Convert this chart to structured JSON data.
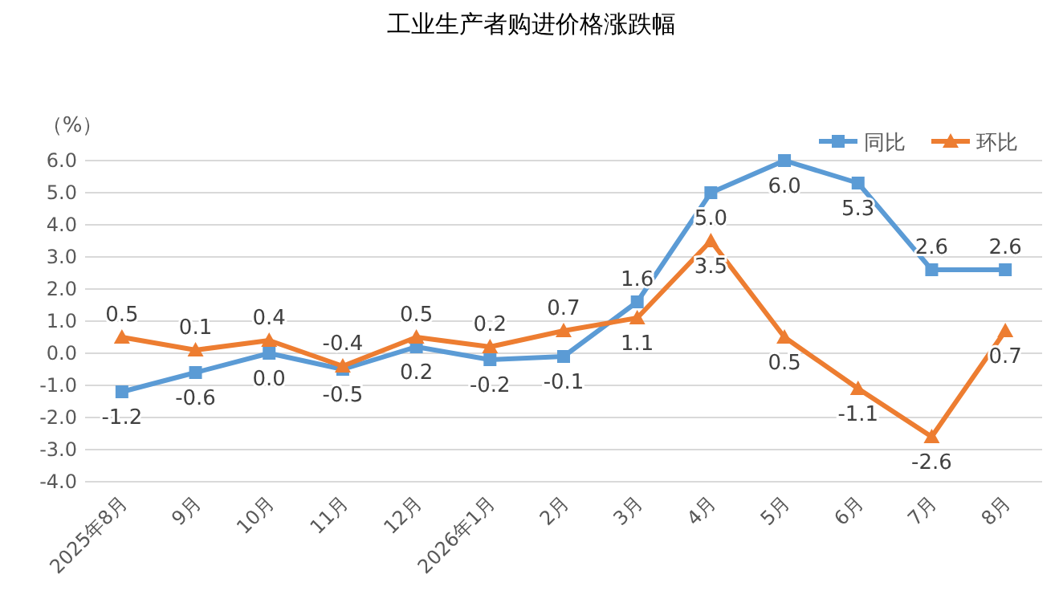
{
  "chart_data": {
    "type": "line",
    "title": "工业生产者购进价格涨跌幅",
    "ylabel": "（%）",
    "categories": [
      "2025年8月",
      "9月",
      "10月",
      "11月",
      "12月",
      "2026年1月",
      "2月",
      "3月",
      "4月",
      "5月",
      "6月",
      "7月",
      "8月"
    ],
    "series": [
      {
        "name": "同比",
        "color": "#5b9bd5",
        "marker": "square",
        "values": [
          -1.2,
          -0.6,
          0.0,
          -0.5,
          0.2,
          -0.2,
          -0.1,
          1.6,
          5.0,
          6.0,
          5.3,
          2.6,
          2.6
        ],
        "value_labels": [
          "-1.2",
          "-0.6",
          "0.0",
          "-0.5",
          "0.2",
          "-0.2",
          "-0.1",
          "1.6",
          "5.0",
          "6.0",
          "5.3",
          "2.6",
          "2.6"
        ]
      },
      {
        "name": "环比",
        "color": "#ed7d31",
        "marker": "triangle",
        "values": [
          0.5,
          0.1,
          0.4,
          -0.4,
          0.5,
          0.2,
          0.7,
          1.1,
          3.5,
          0.5,
          -1.1,
          -2.6,
          0.7
        ],
        "value_labels": [
          "0.5",
          "0.1",
          "0.4",
          "-0.4",
          "0.5",
          "0.2",
          "0.7",
          "1.1",
          "3.5",
          "0.5",
          "-1.1",
          "-2.6",
          "0.7"
        ]
      }
    ],
    "ylim": [
      -4,
      6
    ],
    "yticks": [
      {
        "value": -4,
        "label": "-4.0"
      },
      {
        "value": -3,
        "label": "-3.0"
      },
      {
        "value": -2,
        "label": "-2.0"
      },
      {
        "value": -1,
        "label": "-1.0"
      },
      {
        "value": 0,
        "label": "0.0"
      },
      {
        "value": 1,
        "label": "1.0"
      },
      {
        "value": 2,
        "label": "2.0"
      },
      {
        "value": 3,
        "label": "3.0"
      },
      {
        "value": 4,
        "label": "4.0"
      },
      {
        "value": 5,
        "label": "5.0"
      },
      {
        "value": 6,
        "label": "6.0"
      }
    ],
    "grid": "y",
    "legend": "top right"
  }
}
